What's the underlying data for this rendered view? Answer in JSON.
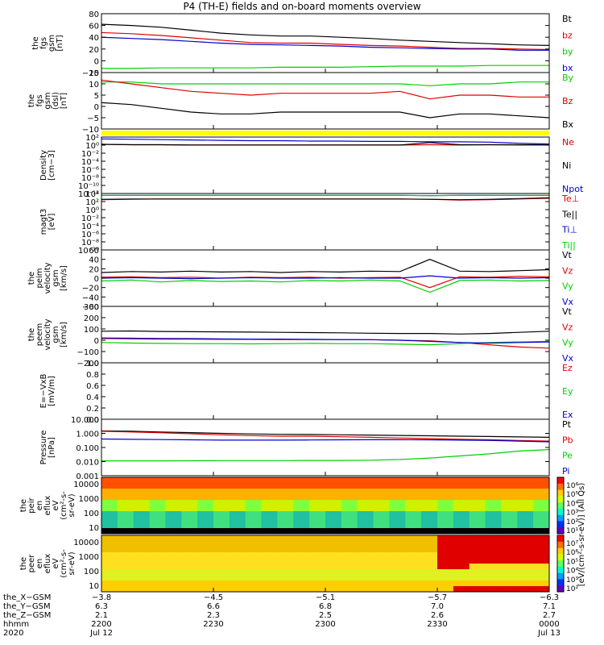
{
  "title": "P4 (TH-E) fields and on-board moments overview",
  "colors": {
    "black": "#000000",
    "red": "#e00000",
    "green": "#00d000",
    "blue": "#0000d0",
    "yellow": "#ffff00"
  },
  "chart_data": [
    {
      "type": "line",
      "ylabel": [
        "the",
        "fgs",
        "gsm",
        "[nT]"
      ],
      "yticks": [
        "80",
        "60",
        "40",
        "20",
        "0",
        "−20"
      ],
      "ylim": [
        -20,
        80
      ],
      "series": [
        {
          "name": "Bt",
          "color": "black",
          "values": [
            62,
            60,
            57,
            52,
            47,
            44,
            42,
            42,
            40,
            38,
            35,
            33,
            31,
            29,
            27,
            26
          ]
        },
        {
          "name": "bz",
          "color": "red",
          "values": [
            48,
            46,
            43,
            39,
            35,
            31,
            30,
            30,
            28,
            26,
            25,
            23,
            21,
            21,
            20,
            19
          ]
        },
        {
          "name": "by",
          "color": "green",
          "values": [
            -13,
            -13,
            -12,
            -12,
            -12,
            -12,
            -11,
            -11,
            -11,
            -10,
            -9,
            -9,
            -9,
            -8,
            -8,
            -8
          ]
        },
        {
          "name": "bx",
          "color": "blue",
          "values": [
            40,
            38,
            36,
            33,
            30,
            28,
            27,
            26,
            25,
            23,
            22,
            21,
            20,
            20,
            18,
            18
          ]
        }
      ]
    },
    {
      "type": "line",
      "ylabel": [
        "the",
        "fgs",
        "gsm",
        "(dsl)",
        "[nT]"
      ],
      "yticks": [
        "15",
        "10",
        "5",
        "0",
        "−5",
        "−10"
      ],
      "ylim": [
        -14,
        16
      ],
      "series": [
        {
          "name": "By",
          "color": "green",
          "values": [
            11,
            11,
            10,
            10,
            10,
            10,
            10,
            10,
            10,
            10,
            10,
            9,
            10,
            10,
            11,
            11
          ]
        },
        {
          "name": "Bz",
          "color": "red",
          "values": [
            12,
            10,
            8,
            6,
            5,
            4,
            5,
            5,
            5,
            5,
            6,
            2,
            4,
            4,
            3,
            3
          ]
        },
        {
          "name": "Bx",
          "color": "black",
          "values": [
            0,
            -1,
            -3,
            -5,
            -6,
            -6,
            -5,
            -5,
            -5,
            -5,
            -5,
            -8,
            -6,
            -6,
            -7,
            -8
          ]
        }
      ]
    },
    {
      "type": "line",
      "ylabel": [
        "Density",
        "[cm−3]"
      ],
      "yticks": [
        "10²",
        "10⁰",
        "10⁻²",
        "10⁻⁴",
        "10⁻⁶",
        "10⁻⁸",
        "10⁻¹⁰",
        "10⁻¹²"
      ],
      "ylim": [
        -13,
        2.5
      ],
      "log": true,
      "series": [
        {
          "name": "Ne",
          "color": "red",
          "values": [
            0.5,
            0.4,
            0.4,
            0.3,
            0.3,
            0.3,
            0.3,
            0.3,
            0.3,
            0.3,
            0.3,
            0.4,
            0.3,
            0.4,
            0.3,
            0.3
          ]
        },
        {
          "name": "Ni",
          "color": "black",
          "values": [
            0.5,
            0.4,
            0.4,
            0.3,
            0.3,
            0.3,
            0.3,
            0.3,
            0.3,
            0.3,
            0.3,
            1.0,
            0.4,
            0.4,
            0.4,
            0.4
          ]
        },
        {
          "name": "Npot",
          "color": "blue",
          "values": [
            2.0,
            1.9,
            1.8,
            1.7,
            1.6,
            1.5,
            1.5,
            1.4,
            1.4,
            1.3,
            1.3,
            1.2,
            1.2,
            1.1,
            0.8,
            0.6
          ]
        }
      ]
    },
    {
      "type": "line",
      "ylabel": [
        "magt3",
        "[eV]"
      ],
      "yticks": [
        "10⁴",
        "10²",
        "10⁰",
        "10⁻²",
        "10⁻⁴",
        "10⁻⁶",
        "10⁻⁸",
        "10⁻¹⁰"
      ],
      "ylim": [
        -11,
        4.5
      ],
      "log": true,
      "series": [
        {
          "name": "Te⊥",
          "color": "red",
          "values": [
            2.8,
            2.9,
            3.0,
            3.0,
            3.0,
            3.0,
            3.0,
            3.0,
            3.0,
            3.0,
            3.0,
            2.9,
            2.7,
            2.8,
            3.0,
            3.2
          ]
        },
        {
          "name": "Te||",
          "color": "black",
          "values": [
            2.9,
            3.0,
            3.0,
            3.0,
            3.0,
            3.0,
            3.0,
            3.0,
            3.0,
            3.0,
            3.0,
            2.9,
            2.8,
            2.9,
            3.1,
            3.3
          ]
        },
        {
          "name": "Ti⊥",
          "color": "blue",
          "values": [
            4.0,
            4.0,
            4.0,
            4.0,
            4.0,
            4.0,
            4.0,
            4.0,
            4.0,
            4.0,
            4.0,
            3.9,
            4.0,
            4.0,
            4.0,
            4.0
          ]
        },
        {
          "name": "Ti||",
          "color": "green",
          "values": [
            4.0,
            4.0,
            4.0,
            4.0,
            4.0,
            4.0,
            4.0,
            4.0,
            4.0,
            4.0,
            4.0,
            3.9,
            4.0,
            4.0,
            4.0,
            4.0
          ]
        }
      ]
    },
    {
      "type": "line",
      "ylabel": [
        "the",
        "peim",
        "velocity",
        "gsm",
        "[km/s]"
      ],
      "yticks": [
        "60",
        "40",
        "20",
        "0",
        "−20",
        "−40",
        "−60"
      ],
      "ylim": [
        -60,
        60
      ],
      "series": [
        {
          "name": "Vt",
          "color": "black",
          "values": [
            12,
            14,
            13,
            15,
            13,
            14,
            12,
            14,
            13,
            15,
            14,
            40,
            15,
            14,
            16,
            18
          ]
        },
        {
          "name": "Vz",
          "color": "red",
          "values": [
            2,
            3,
            1,
            2,
            0,
            2,
            1,
            2,
            0,
            1,
            2,
            -20,
            3,
            2,
            4,
            3
          ]
        },
        {
          "name": "Vy",
          "color": "green",
          "values": [
            -6,
            -4,
            -8,
            -5,
            -7,
            -6,
            -8,
            -5,
            -6,
            -4,
            -6,
            -30,
            -5,
            -4,
            -6,
            -5
          ]
        },
        {
          "name": "Vx",
          "color": "blue",
          "values": [
            0,
            1,
            0,
            -1,
            0,
            1,
            0,
            0,
            1,
            0,
            0,
            5,
            0,
            1,
            0,
            1
          ]
        }
      ]
    },
    {
      "type": "line",
      "ylabel": [
        "the",
        "peem",
        "velocity",
        "gsm",
        "[km/s]"
      ],
      "yticks": [
        "300",
        "200",
        "100",
        "0",
        "−100",
        "−200"
      ],
      "ylim": [
        -200,
        300
      ],
      "series": [
        {
          "name": "Vt",
          "color": "black",
          "values": [
            80,
            82,
            78,
            76,
            74,
            72,
            70,
            68,
            66,
            62,
            60,
            60,
            55,
            60,
            70,
            80
          ]
        },
        {
          "name": "Vz",
          "color": "red",
          "values": [
            15,
            12,
            10,
            10,
            8,
            8,
            6,
            6,
            5,
            5,
            0,
            -5,
            -20,
            -40,
            -60,
            -70
          ]
        },
        {
          "name": "Vy",
          "color": "green",
          "values": [
            -20,
            -25,
            -28,
            -30,
            -30,
            -32,
            -30,
            -28,
            -30,
            -30,
            -35,
            -40,
            -30,
            -20,
            -15,
            -10
          ]
        },
        {
          "name": "Vx",
          "color": "blue",
          "values": [
            20,
            18,
            16,
            14,
            12,
            10,
            10,
            8,
            6,
            5,
            0,
            -10,
            -20,
            -25,
            -20,
            -15
          ]
        }
      ]
    },
    {
      "type": "line",
      "ylabel": [
        "E=−VxB",
        "[mV/m]"
      ],
      "yticks": [
        "1.0",
        "0.8",
        "0.6",
        "0.4",
        "0.2",
        "0.0"
      ],
      "ylim": [
        0,
        1
      ],
      "series": [
        {
          "name": "Ez",
          "color": "red",
          "values": []
        },
        {
          "name": "Ey",
          "color": "green",
          "values": []
        },
        {
          "name": "Ex",
          "color": "blue",
          "values": []
        }
      ]
    },
    {
      "type": "line",
      "ylabel": [
        "Pressure",
        "[nPa]"
      ],
      "yticks": [
        "10.000",
        "1.000",
        "0.100",
        "0.010",
        "0.001"
      ],
      "ylim": [
        -3,
        1
      ],
      "log": true,
      "series": [
        {
          "name": "Pt",
          "color": "black",
          "values": [
            0.18,
            0.15,
            0.1,
            0.05,
            0.0,
            -0.04,
            -0.07,
            -0.08,
            -0.1,
            -0.12,
            -0.15,
            -0.17,
            -0.2,
            -0.22,
            -0.25,
            -0.28
          ]
        },
        {
          "name": "Pb",
          "color": "red",
          "values": [
            0.15,
            0.1,
            0.04,
            -0.03,
            -0.1,
            -0.16,
            -0.2,
            -0.2,
            -0.24,
            -0.28,
            -0.33,
            -0.37,
            -0.42,
            -0.45,
            -0.5,
            -0.55
          ]
        },
        {
          "name": "Pe",
          "color": "green",
          "values": [
            -1.95,
            -1.95,
            -1.95,
            -1.94,
            -1.93,
            -1.93,
            -1.93,
            -1.92,
            -1.92,
            -1.9,
            -1.85,
            -1.75,
            -1.6,
            -1.45,
            -1.25,
            -1.15
          ]
        },
        {
          "name": "Pi",
          "color": "blue",
          "values": [
            -0.4,
            -0.42,
            -0.44,
            -0.46,
            -0.48,
            -0.48,
            -0.48,
            -0.47,
            -0.46,
            -0.45,
            -0.45,
            -0.46,
            -0.48,
            -0.5,
            -0.55,
            -0.6
          ]
        }
      ]
    },
    {
      "type": "heatmap",
      "ylabel": [
        "the",
        "peir",
        "en",
        "eflux",
        "eV",
        "(cm²-s-",
        "sr-eV)"
      ],
      "yticks": [
        "10000",
        "1000",
        "100",
        "10"
      ]
    },
    {
      "type": "heatmap",
      "ylabel": [
        "the",
        "peer",
        "en",
        "eflux",
        "eV",
        "(cm²-s-",
        "sr-eV)"
      ],
      "yticks": [
        "10000",
        "1000",
        "100",
        "10"
      ]
    }
  ],
  "colorbars": [
    {
      "ticks": [
        "10⁶",
        "10⁵",
        "10⁴",
        "10³",
        "10²",
        "10¹"
      ]
    },
    {
      "ticks": [
        "10⁷",
        "10⁶",
        "10⁵",
        "10⁴",
        "10³",
        "10²"
      ]
    }
  ],
  "colorbar_label": "[eV/(cm²-s-sr-eV)] (All Qs)",
  "xaxis": {
    "rows": [
      {
        "name": "the_X−GSM",
        "values": [
          "−3.8",
          "−4.5",
          "−5.1",
          "−5.7",
          "−6.3"
        ]
      },
      {
        "name": "the_Y−GSM",
        "values": [
          "6.3",
          "6.6",
          "6.8",
          "7.0",
          "7.1"
        ]
      },
      {
        "name": "the_Z−GSM",
        "values": [
          "2.1",
          "2.3",
          "2.5",
          "2.6",
          "2.7"
        ]
      },
      {
        "name": "hhmm",
        "values": [
          "2200",
          "2230",
          "2300",
          "2330",
          "0000"
        ]
      },
      {
        "name": "2020",
        "values": [
          "Jul 12",
          "",
          "",
          "",
          "Jul 13"
        ]
      }
    ]
  }
}
